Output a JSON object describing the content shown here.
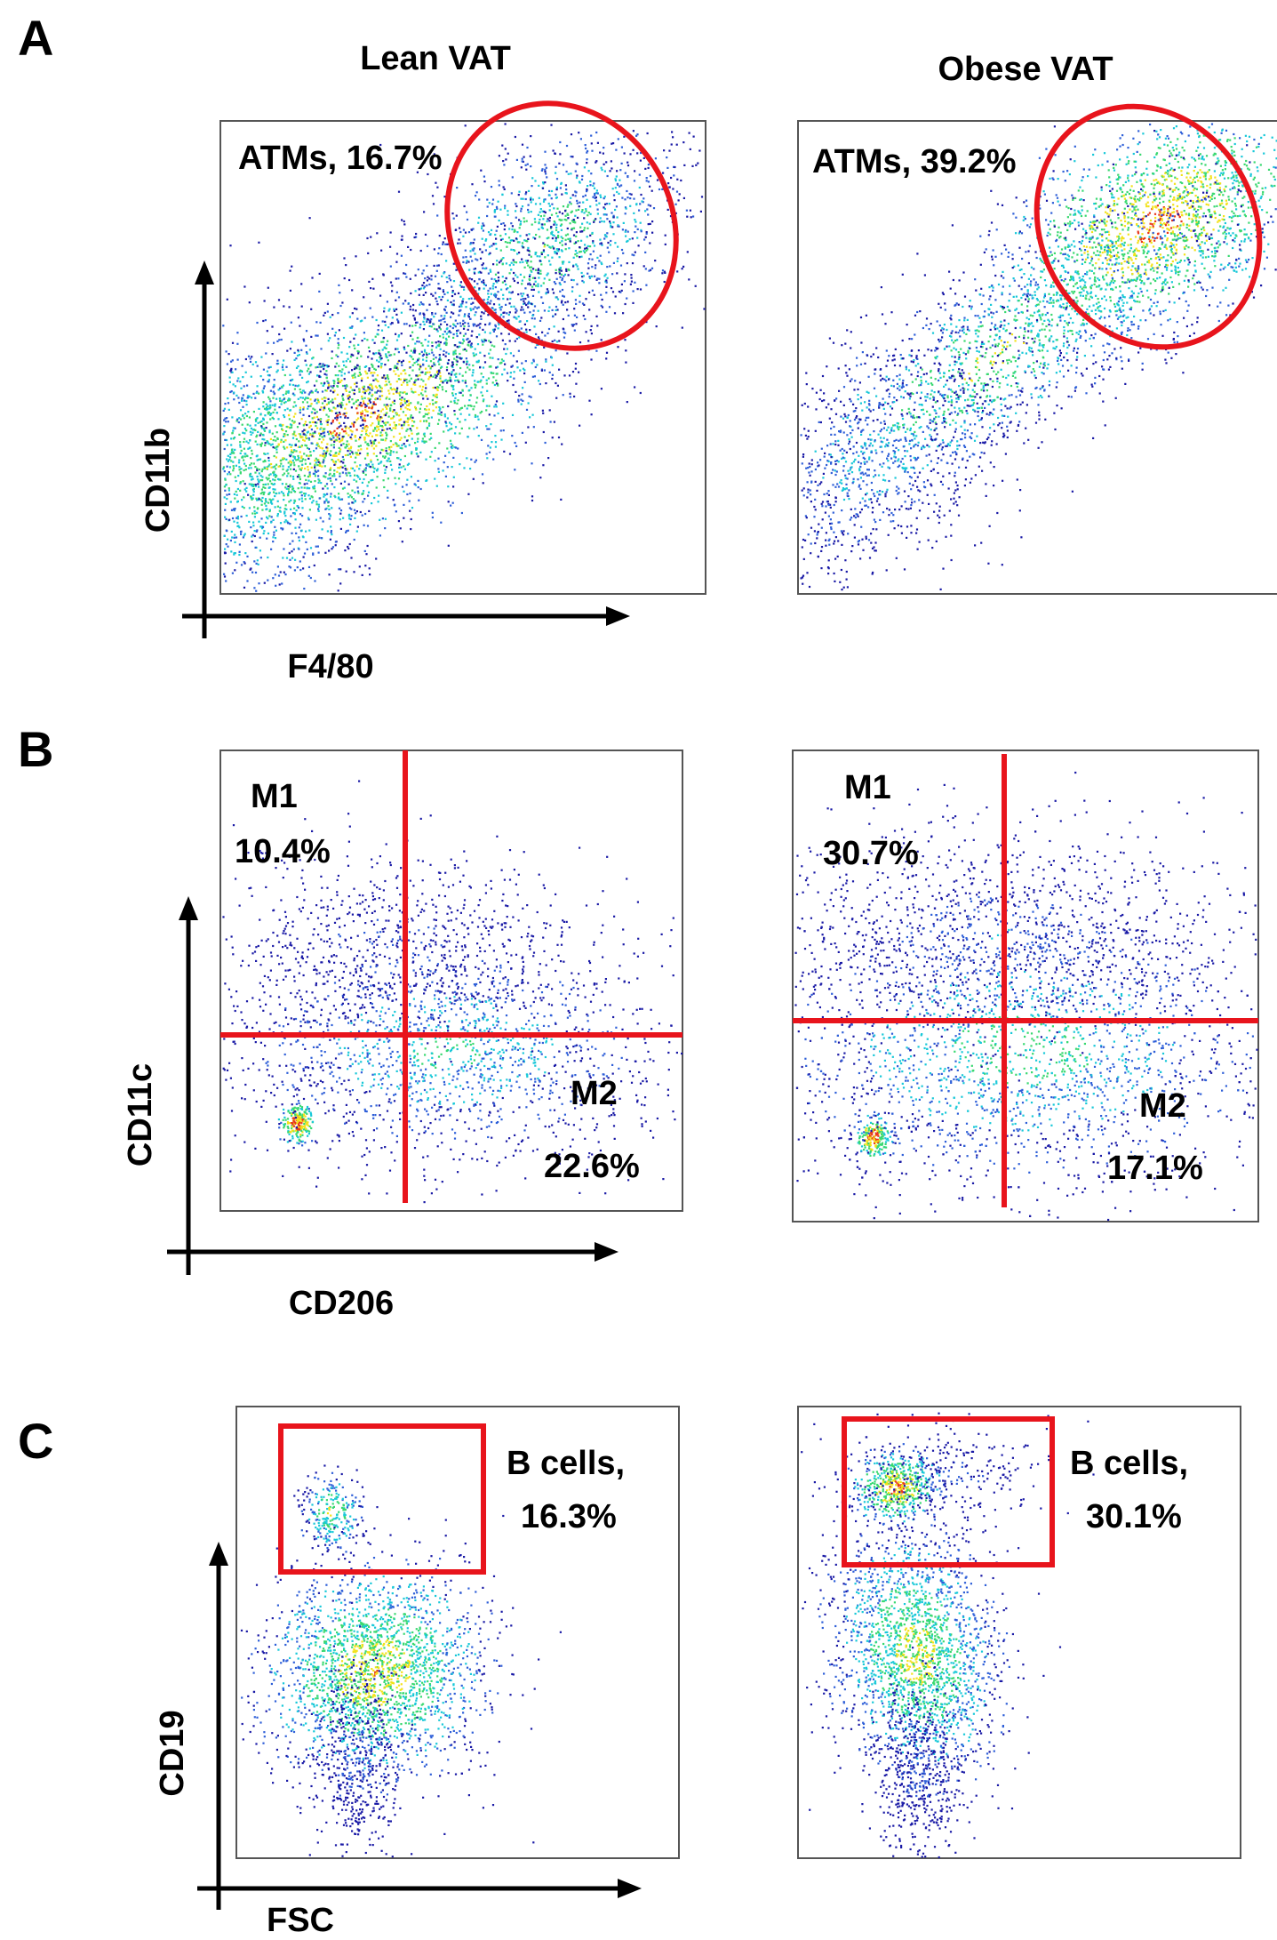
{
  "figure": {
    "columns": [
      "Lean VAT",
      "Obese VAT"
    ],
    "panels": [
      {
        "letter": "A",
        "x_axis": "F4/80",
        "y_axis": "CD11b",
        "gates": [
          {
            "label": "ATMs, 16.7%"
          },
          {
            "label": "ATMs, 39.2%"
          }
        ]
      },
      {
        "letter": "B",
        "x_axis": "CD206",
        "y_axis": "CD11c",
        "gates": [
          {
            "m1_name": "M1",
            "m1_pct": "10.4%",
            "m2_name": "M2",
            "m2_pct": "22.6%"
          },
          {
            "m1_name": "M1",
            "m1_pct": "30.7%",
            "m2_name": "M2",
            "m2_pct": "17.1%"
          }
        ]
      },
      {
        "letter": "C",
        "x_axis": "FSC",
        "y_axis": "CD19",
        "gates": [
          {
            "line1": "B cells,",
            "line2": "16.3%"
          },
          {
            "line1": "B cells,",
            "line2": "30.1%"
          }
        ]
      }
    ],
    "colors": {
      "gate": "#e8141c",
      "density_low": "#1a1aa6",
      "density_mid": "#18c8d8",
      "density_high": "#f2e21a",
      "density_peak": "#e8381c",
      "axis": "#000000"
    }
  }
}
